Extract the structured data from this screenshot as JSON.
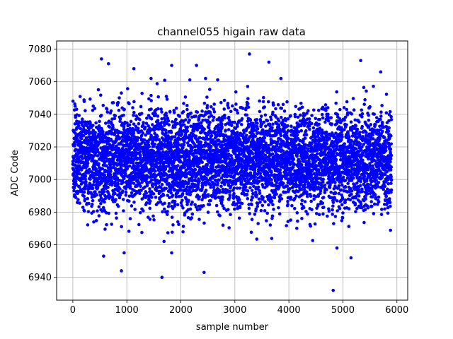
{
  "chart_data": {
    "type": "scatter",
    "title": "channel055 higain raw data",
    "xlabel": "sample number",
    "ylabel": "ADC Code",
    "xlim": [
      -300,
      6200
    ],
    "ylim": [
      6926,
      7085
    ],
    "xticks": [
      0,
      1000,
      2000,
      3000,
      4000,
      5000,
      6000
    ],
    "yticks": [
      6940,
      6960,
      6980,
      7000,
      7020,
      7040,
      7060,
      7080
    ],
    "grid": true,
    "marker_color": "#0000ff",
    "series": [
      {
        "color": "#0000ff",
        "n_points": 5900,
        "x_range": [
          0,
          5900
        ],
        "center": 7012,
        "spread_sd": 15,
        "notable_points": [
          {
            "x": 530,
            "y": 7074
          },
          {
            "x": 660,
            "y": 7071
          },
          {
            "x": 1130,
            "y": 7068
          },
          {
            "x": 1830,
            "y": 7070
          },
          {
            "x": 2290,
            "y": 7070
          },
          {
            "x": 3270,
            "y": 7077
          },
          {
            "x": 3630,
            "y": 7072
          },
          {
            "x": 5330,
            "y": 7073
          },
          {
            "x": 5700,
            "y": 7066
          },
          {
            "x": 900,
            "y": 6944
          },
          {
            "x": 1650,
            "y": 6940
          },
          {
            "x": 2430,
            "y": 6943
          },
          {
            "x": 1830,
            "y": 6955
          },
          {
            "x": 4820,
            "y": 6932
          },
          {
            "x": 4890,
            "y": 6958
          },
          {
            "x": 5150,
            "y": 6952
          },
          {
            "x": 570,
            "y": 6953
          },
          {
            "x": 950,
            "y": 6955
          }
        ]
      }
    ]
  }
}
